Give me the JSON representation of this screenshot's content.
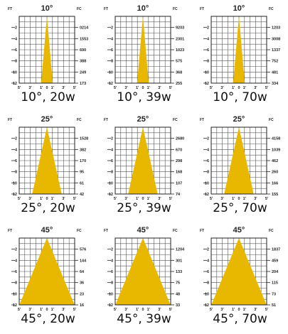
{
  "chart_data": [
    {
      "type": "area",
      "title": "10°",
      "beam_angle_deg": 10,
      "caption": "10°, 20w",
      "ylabel": "FT",
      "y2label": "FC",
      "ft": [
        "2",
        "4",
        "6",
        "8",
        "10",
        "12"
      ],
      "fc": [
        "0214",
        "1553",
        "690",
        "388",
        "249",
        "173"
      ],
      "x_ticks": [
        "5'",
        "3'",
        "1'",
        "0",
        "1'",
        "3'",
        "5'"
      ]
    },
    {
      "type": "area",
      "title": "10°",
      "beam_angle_deg": 10,
      "caption": "10°, 39w",
      "ylabel": "FT",
      "y2label": "FC",
      "ft": [
        "2",
        "4",
        "6",
        "8",
        "10",
        "12"
      ],
      "fc": [
        "9203",
        "2301",
        "1023",
        "575",
        "368",
        "255"
      ],
      "x_ticks": [
        "5'",
        "3'",
        "1'",
        "0",
        "1'",
        "3'",
        "5'"
      ]
    },
    {
      "type": "area",
      "title": "10°",
      "beam_angle_deg": 10,
      "caption": "10°, 70w",
      "ylabel": "FT",
      "y2label": "FC",
      "ft": [
        "2",
        "4",
        "6",
        "8",
        "10",
        "12"
      ],
      "fc": [
        "1203",
        "3008",
        "1337",
        "752",
        "481",
        "334"
      ],
      "x_ticks": [
        "5'",
        "3'",
        "1'",
        "0",
        "1'",
        "3'",
        "5'"
      ]
    },
    {
      "type": "area",
      "title": "25°",
      "beam_angle_deg": 25,
      "caption": "25°, 20w",
      "ylabel": "FT",
      "y2label": "FC",
      "ft": [
        "2",
        "4",
        "6",
        "8",
        "10",
        "12"
      ],
      "fc": [
        "1528",
        "382",
        "170",
        "95",
        "61",
        "42"
      ],
      "x_ticks": [
        "5'",
        "3'",
        "1'",
        "0",
        "1'",
        "3'",
        "5'"
      ]
    },
    {
      "type": "area",
      "title": "25°",
      "beam_angle_deg": 25,
      "caption": "25°, 39w",
      "ylabel": "FT",
      "y2label": "FC",
      "ft": [
        "2",
        "4",
        "6",
        "8",
        "10",
        "12"
      ],
      "fc": [
        "2680",
        "670",
        "298",
        "168",
        "107",
        "74"
      ],
      "x_ticks": [
        "5'",
        "3'",
        "1'",
        "0",
        "1'",
        "3'",
        "5'"
      ]
    },
    {
      "type": "area",
      "title": "25°",
      "beam_angle_deg": 25,
      "caption": "25°, 70w",
      "ylabel": "FT",
      "y2label": "FC",
      "ft": [
        "2",
        "4",
        "6",
        "8",
        "10",
        "12"
      ],
      "fc": [
        "4158",
        "1039",
        "462",
        "260",
        "166",
        "155"
      ],
      "x_ticks": [
        "5'",
        "3'",
        "1'",
        "0",
        "1'",
        "3'",
        "5'"
      ]
    },
    {
      "type": "area",
      "title": "45°",
      "beam_angle_deg": 45,
      "caption": "45°, 20w",
      "ylabel": "FT",
      "y2label": "FC",
      "ft": [
        "2",
        "4",
        "6",
        "8",
        "10",
        "12"
      ],
      "fc": [
        "576",
        "144",
        "64",
        "36",
        "23",
        "16"
      ],
      "x_ticks": [
        "5'",
        "3'",
        "1'",
        "0",
        "1'",
        "3'",
        "5'"
      ]
    },
    {
      "type": "area",
      "title": "45°",
      "beam_angle_deg": 45,
      "caption": "45°, 39w",
      "ylabel": "FT",
      "y2label": "FC",
      "ft": [
        "2",
        "4",
        "6",
        "8",
        "10",
        "12"
      ],
      "fc": [
        "1204",
        "301",
        "133",
        "75",
        "48",
        "33"
      ],
      "x_ticks": [
        "5'",
        "3'",
        "1'",
        "0",
        "1'",
        "3'",
        "5'"
      ]
    },
    {
      "type": "area",
      "title": "45°",
      "beam_angle_deg": 45,
      "caption": "45°, 70w",
      "ylabel": "FT",
      "y2label": "FC",
      "ft": [
        "2",
        "4",
        "6",
        "8",
        "10",
        "12"
      ],
      "fc": [
        "1837",
        "459",
        "204",
        "115",
        "73",
        "51"
      ],
      "x_ticks": [
        "5'",
        "3'",
        "1'",
        "0",
        "1'",
        "3'",
        "5'"
      ]
    }
  ],
  "colors": {
    "beam": "#e8b800",
    "grid": "#555555",
    "frame": "#222222"
  }
}
